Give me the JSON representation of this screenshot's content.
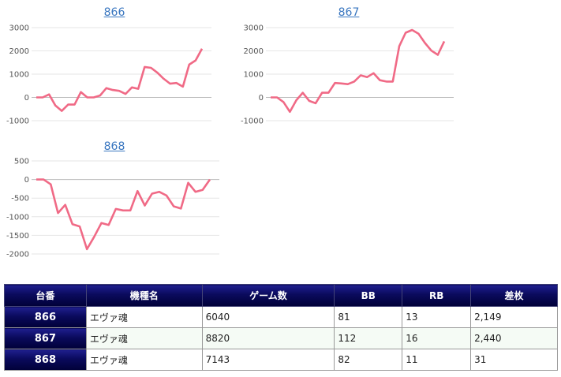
{
  "chart_data": [
    {
      "type": "line",
      "title": "866",
      "ylim": [
        -1000,
        3000
      ],
      "yticks": [
        "3000",
        "2000",
        "1000",
        "0",
        "-1000"
      ],
      "ytick_values": [
        3000,
        2000,
        1000,
        0,
        -1000
      ],
      "grid": true,
      "color": "#f06a86",
      "series": [
        {
          "values": [
            0,
            0,
            130,
            -350,
            -580,
            -310,
            -310,
            230,
            0,
            0,
            80,
            400,
            320,
            280,
            150,
            430,
            370,
            1310,
            1270,
            1060,
            800,
            590,
            620,
            460,
            1410,
            1590,
            2090
          ]
        }
      ]
    },
    {
      "type": "line",
      "title": "867",
      "ylim": [
        -1000,
        3000
      ],
      "yticks": [
        "3000",
        "2000",
        "1000",
        "0",
        "-1000"
      ],
      "ytick_values": [
        3000,
        2000,
        1000,
        0,
        -1000
      ],
      "grid": true,
      "color": "#f06a86",
      "series": [
        {
          "values": [
            0,
            0,
            -200,
            -620,
            -120,
            200,
            -150,
            -250,
            200,
            200,
            620,
            600,
            570,
            680,
            950,
            870,
            1040,
            740,
            680,
            680,
            2200,
            2780,
            2900,
            2740,
            2340,
            2010,
            1830,
            2410
          ]
        }
      ]
    },
    {
      "type": "line",
      "title": "868",
      "ylim": [
        -2000,
        500
      ],
      "yticks": [
        "500",
        "0",
        "-500",
        "-1000",
        "-1500",
        "-2000"
      ],
      "ytick_values": [
        500,
        0,
        -500,
        -1000,
        -1500,
        -2000
      ],
      "grid": true,
      "color": "#f06a86",
      "series": [
        {
          "values": [
            0,
            0,
            -130,
            -900,
            -680,
            -1200,
            -1260,
            -1870,
            -1540,
            -1170,
            -1220,
            -790,
            -830,
            -830,
            -310,
            -700,
            -380,
            -330,
            -430,
            -720,
            -780,
            -90,
            -330,
            -280,
            0
          ]
        }
      ]
    }
  ],
  "table": {
    "headers": [
      "台番",
      "機種名",
      "ゲーム数",
      "BB",
      "RB",
      "差枚"
    ],
    "rows": [
      {
        "no": "866",
        "name": "エヴァ魂",
        "games": "6040",
        "bb": "81",
        "rb": "13",
        "diff": "2,149"
      },
      {
        "no": "867",
        "name": "エヴァ魂",
        "games": "8820",
        "bb": "112",
        "rb": "16",
        "diff": "2,440"
      },
      {
        "no": "868",
        "name": "エヴァ魂",
        "games": "7143",
        "bb": "82",
        "rb": "11",
        "diff": "31"
      }
    ]
  }
}
